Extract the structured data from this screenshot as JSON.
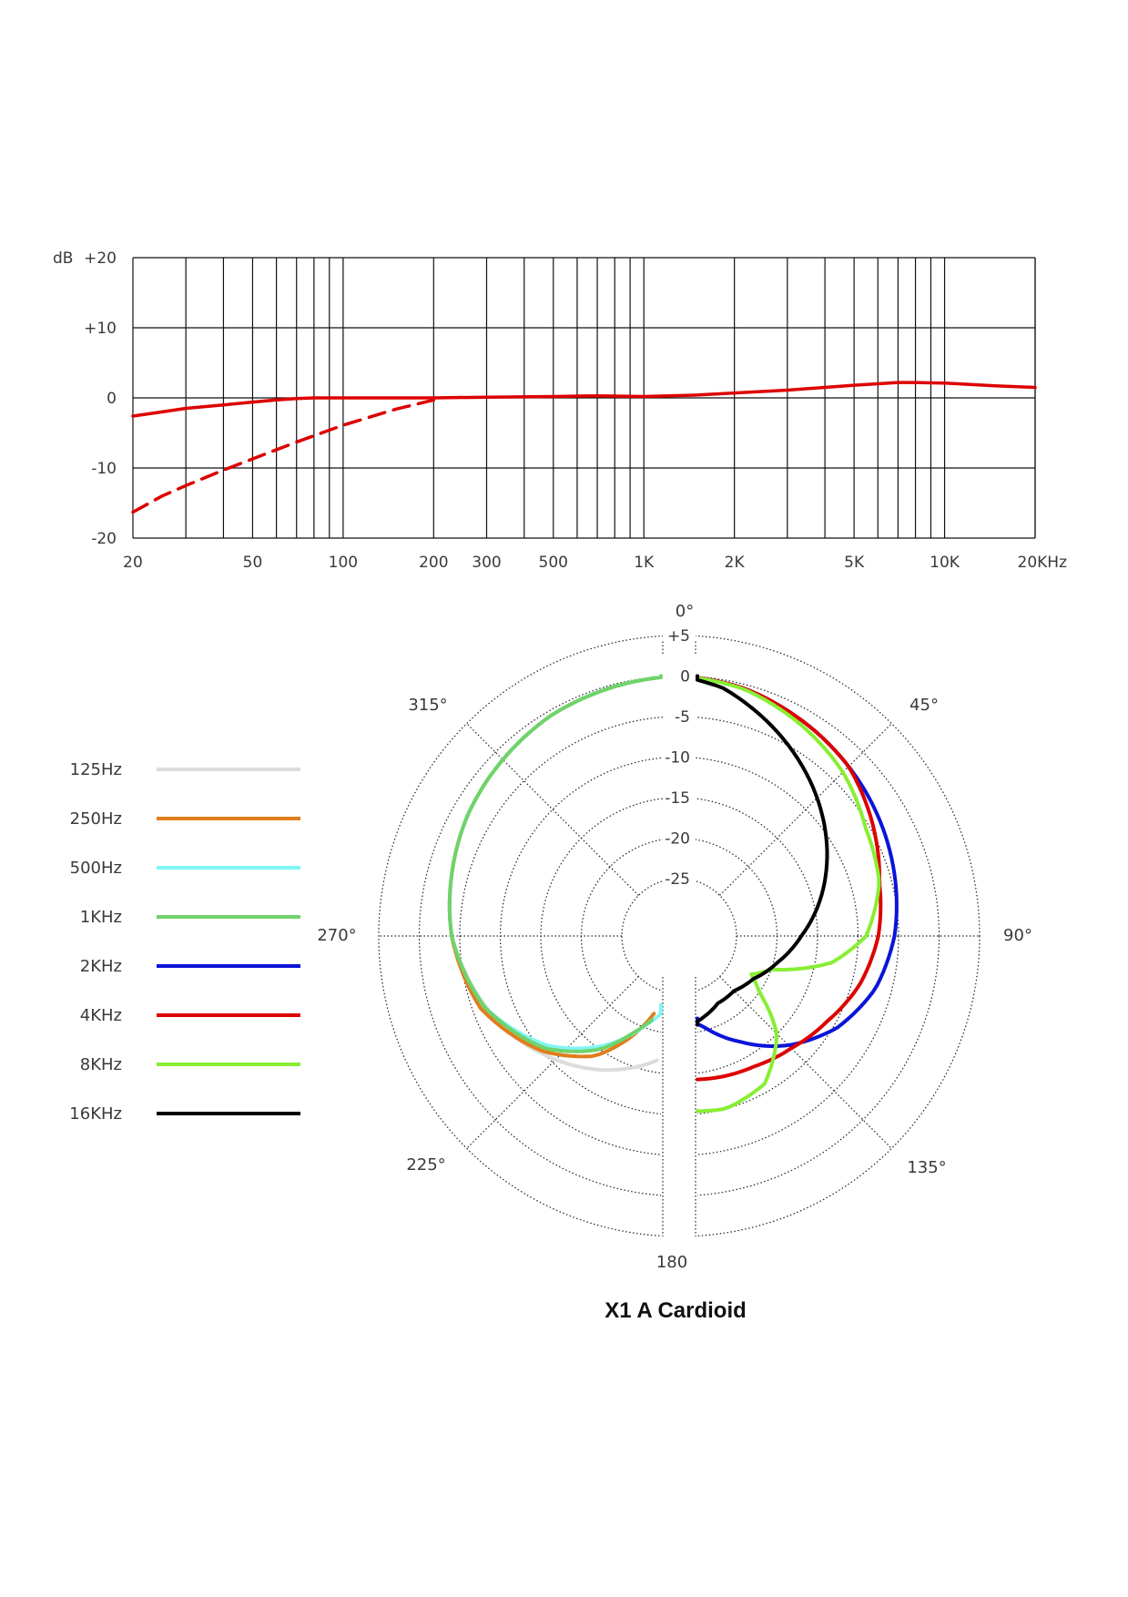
{
  "title": "X1 A Cardioid",
  "chart_data": [
    {
      "type": "line",
      "name": "frequency-response",
      "ylabel": "dB",
      "ylim": [
        -20,
        20
      ],
      "xlim": [
        20,
        20000
      ],
      "x_scale": "log",
      "grid": true,
      "y_ticks": [
        {
          "value": 20,
          "label": "+20"
        },
        {
          "value": 10,
          "label": "+10"
        },
        {
          "value": 0,
          "label": "0"
        },
        {
          "value": -10,
          "label": "-10"
        },
        {
          "value": -20,
          "label": "-20"
        }
      ],
      "x_ticks": [
        {
          "value": 20,
          "label": "20"
        },
        {
          "value": 50,
          "label": "50"
        },
        {
          "value": 100,
          "label": "100"
        },
        {
          "value": 200,
          "label": "200"
        },
        {
          "value": 300,
          "label": "300"
        },
        {
          "value": 500,
          "label": "500"
        },
        {
          "value": 1000,
          "label": "1K"
        },
        {
          "value": 2000,
          "label": "2K"
        },
        {
          "value": 5000,
          "label": "5K"
        },
        {
          "value": 10000,
          "label": "10K"
        },
        {
          "value": 20000,
          "label": "20KHz"
        }
      ],
      "series": [
        {
          "style": "solid",
          "color": "#dd0000",
          "x": [
            20,
            25,
            30,
            40,
            50,
            60,
            70,
            80,
            100,
            150,
            200,
            300,
            500,
            700,
            1000,
            1500,
            2000,
            3000,
            5000,
            7000,
            8000,
            10000,
            15000,
            20000
          ],
          "y": [
            -2.6,
            -2.0,
            -1.5,
            -1.0,
            -0.6,
            -0.3,
            -0.1,
            0,
            0,
            0,
            0,
            0.1,
            0.2,
            0.3,
            0.2,
            0.4,
            0.7,
            1.1,
            1.8,
            2.2,
            2.2,
            2.1,
            1.7,
            1.5
          ]
        },
        {
          "style": "dashed",
          "color": "#dd0000",
          "x": [
            20,
            25,
            30,
            40,
            50,
            70,
            100,
            150,
            200
          ],
          "y": [
            -16.3,
            -14.0,
            -12.5,
            -10.3,
            -8.7,
            -6.3,
            -3.9,
            -1.6,
            -0.3
          ]
        }
      ]
    },
    {
      "type": "polar",
      "name": "polar-pattern",
      "rlim": [
        -25,
        5
      ],
      "ring_labels": [
        "+5",
        "0",
        "-5",
        "-10",
        "-15",
        "-20",
        "-25"
      ],
      "angle_labels": [
        {
          "angle": 0,
          "label": "0°"
        },
        {
          "angle": 45,
          "label": "45°"
        },
        {
          "angle": 90,
          "label": "90°"
        },
        {
          "angle": 135,
          "label": "135°"
        },
        {
          "angle": 180,
          "label": "180"
        },
        {
          "angle": 225,
          "label": "225°"
        },
        {
          "angle": 270,
          "label": "270°"
        },
        {
          "angle": 315,
          "label": "315°"
        }
      ],
      "series": [
        {
          "name": "125Hz",
          "color": "#dcdcdc",
          "side": "left",
          "angles": [
            0,
            30,
            60,
            90,
            120,
            150,
            170
          ],
          "db": [
            0,
            -0.6,
            -2,
            -4,
            -8,
            -13,
            -16.5
          ]
        },
        {
          "name": "250Hz",
          "color": "#e07d1c",
          "side": "left",
          "angles": [
            0,
            30,
            60,
            90,
            110,
            130,
            145,
            155,
            162
          ],
          "db": [
            0,
            -0.6,
            -2,
            -4,
            -6,
            -10,
            -14,
            -18.5,
            -22
          ]
        },
        {
          "name": "500Hz",
          "color": "#7ff6f6",
          "side": "left",
          "angles": [
            0,
            30,
            60,
            90,
            110,
            130,
            145,
            160,
            172
          ],
          "db": [
            0,
            -0.6,
            -2,
            -4,
            -6.5,
            -11,
            -15.5,
            -20.5,
            -23.5
          ]
        },
        {
          "name": "1KHz",
          "color": "#6fd36a",
          "side": "left",
          "angles": [
            0,
            30,
            60,
            90,
            110,
            130,
            145,
            155,
            163
          ],
          "db": [
            0,
            -0.6,
            -2,
            -4,
            -6.5,
            -10.5,
            -15,
            -19,
            -21.5
          ]
        },
        {
          "name": "2KHz",
          "color": "#0a14d8",
          "side": "right",
          "angles": [
            0,
            15,
            30,
            45,
            60,
            75,
            90,
            105,
            120,
            135,
            150,
            165,
            175
          ],
          "db": [
            0,
            -0.5,
            -1.5,
            -2.5,
            -3.5,
            -4.5,
            -5.5,
            -7,
            -9.5,
            -13,
            -17,
            -20.5,
            -22
          ]
        },
        {
          "name": "4KHz",
          "color": "#dd0000",
          "side": "right",
          "angles": [
            0,
            15,
            30,
            45,
            60,
            75,
            90,
            105,
            120,
            135,
            150,
            165,
            175
          ],
          "db": [
            0,
            -0.5,
            -1.5,
            -2.5,
            -4.5,
            -6.5,
            -7.5,
            -9,
            -11,
            -12.5,
            -13.5,
            -14,
            -14.3
          ]
        },
        {
          "name": "8KHz",
          "color": "#88ee33",
          "side": "right",
          "angles": [
            0,
            15,
            30,
            45,
            60,
            75,
            90,
            100,
            110,
            118,
            125,
            135,
            150,
            165,
            175
          ],
          "db": [
            0,
            -0.6,
            -2,
            -3.5,
            -5.5,
            -6.5,
            -9,
            -13,
            -20,
            -22,
            -20,
            -15,
            -11,
            -10,
            -10.4
          ]
        },
        {
          "name": "16KHz",
          "color": "#000000",
          "side": "right",
          "angles": [
            0,
            10,
            20,
            30,
            40,
            50,
            60,
            75,
            90,
            105,
            120,
            135,
            150,
            165,
            172
          ],
          "db": [
            0,
            -1,
            -3,
            -5,
            -7,
            -9,
            -11,
            -14,
            -17,
            -19.5,
            -21.5,
            -22.5,
            -22.5,
            -21.5,
            -21
          ]
        }
      ]
    }
  ]
}
